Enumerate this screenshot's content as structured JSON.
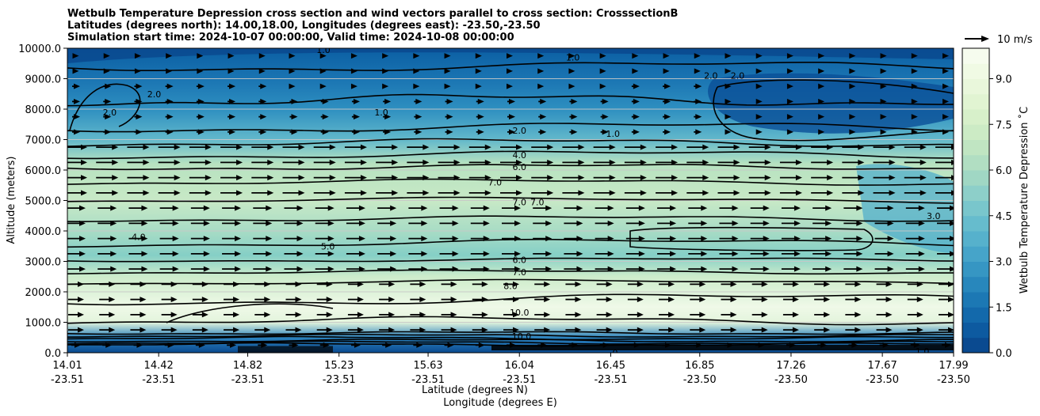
{
  "chart_data": {
    "type": "contour",
    "title_lines": [
      "Wetbulb Temperature Depression cross section and wind vectors parallel to cross section: CrosssectionB",
      "Latitudes (degrees north): 14.00,18.00, Longitudes (degrees east): -23.50,-23.50",
      "Simulation start time: 2024-10-07 00:00:00, Valid time: 2024-10-08 00:00:00"
    ],
    "ylabel": "Altitude (meters)",
    "xlabel_lat": "Latitude (degrees N)",
    "xlabel_lon": "Longitude (degrees E)",
    "ylim": [
      0,
      10000
    ],
    "yticks": [
      "0.0",
      "1000.0",
      "2000.0",
      "3000.0",
      "4000.0",
      "5000.0",
      "6000.0",
      "7000.0",
      "8000.0",
      "9000.0",
      "10000.0"
    ],
    "xticks": [
      {
        "lat": "14.01",
        "lon": "-23.51"
      },
      {
        "lat": "14.42",
        "lon": "-23.51"
      },
      {
        "lat": "14.82",
        "lon": "-23.51"
      },
      {
        "lat": "15.23",
        "lon": "-23.51"
      },
      {
        "lat": "15.63",
        "lon": "-23.51"
      },
      {
        "lat": "16.04",
        "lon": "-23.51"
      },
      {
        "lat": "16.45",
        "lon": "-23.51"
      },
      {
        "lat": "16.85",
        "lon": "-23.50"
      },
      {
        "lat": "17.26",
        "lon": "-23.50"
      },
      {
        "lat": "17.67",
        "lon": "-23.50"
      },
      {
        "lat": "17.99",
        "lon": "-23.50"
      }
    ],
    "colorbar": {
      "label": "Wetbulb Temperature Depression ˚C",
      "range": [
        0,
        10
      ],
      "ticks": [
        "0.0",
        "1.5",
        "3.0",
        "4.5",
        "6.0",
        "7.5",
        "9.0"
      ]
    },
    "wind_key": "10 m/s",
    "contour_labels": [
      {
        "text": "2.0",
        "lat": 16.04,
        "alt": 7300
      },
      {
        "text": "4.0",
        "lat": 16.04,
        "alt": 6500
      },
      {
        "text": "6.0",
        "lat": 16.04,
        "alt": 6100
      },
      {
        "text": "7.0",
        "lat": 15.93,
        "alt": 5600
      },
      {
        "text": "7.0",
        "lat": 16.04,
        "alt": 4950
      },
      {
        "text": "7.0",
        "lat": 16.12,
        "alt": 4950
      },
      {
        "text": "6.0",
        "lat": 16.04,
        "alt": 3050
      },
      {
        "text": "7.0",
        "lat": 16.04,
        "alt": 2650
      },
      {
        "text": "8.0",
        "lat": 16.0,
        "alt": 2200
      },
      {
        "text": "10.0",
        "lat": 16.04,
        "alt": 1320
      },
      {
        "text": "10.0",
        "lat": 16.05,
        "alt": 550
      },
      {
        "text": "2.0",
        "lat": 14.2,
        "alt": 7900
      },
      {
        "text": "2.0",
        "lat": 14.4,
        "alt": 8500
      },
      {
        "text": "1.0",
        "lat": 15.42,
        "alt": 7900
      },
      {
        "text": "1.0",
        "lat": 16.46,
        "alt": 7200
      },
      {
        "text": "1.0",
        "lat": 16.28,
        "alt": 9700
      },
      {
        "text": "2.0",
        "lat": 16.9,
        "alt": 9100
      },
      {
        "text": "2.0",
        "lat": 17.02,
        "alt": 9100
      },
      {
        "text": "1.0",
        "lat": 15.16,
        "alt": 9950
      },
      {
        "text": "4.0",
        "lat": 14.33,
        "alt": 3800
      },
      {
        "text": "5.0",
        "lat": 15.18,
        "alt": 3500
      },
      {
        "text": "3.0",
        "lat": 17.9,
        "alt": 4500
      },
      {
        "text": "1.0",
        "lat": 17.85,
        "alt": 50
      },
      {
        "text": "0",
        "lat": 16.47,
        "alt": 0
      }
    ]
  }
}
